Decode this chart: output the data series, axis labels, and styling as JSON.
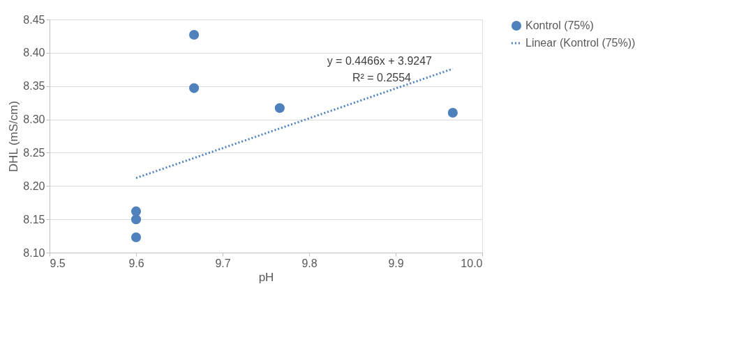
{
  "chart_data": {
    "type": "scatter",
    "xlabel": "pH",
    "ylabel": "DHL (mS/cm)",
    "xlim": [
      9.5,
      10.0
    ],
    "xticks": [
      9.5,
      9.6,
      9.7,
      9.8,
      9.9,
      {
        "value": 10.0,
        "label": "10.0"
      }
    ],
    "ylim": [
      8.1,
      8.45
    ],
    "yticks": [
      {
        "value": 8.1,
        "label": "8.10"
      },
      8.15,
      {
        "value": 8.2,
        "label": "8.20"
      },
      8.25,
      {
        "value": 8.3,
        "label": "8.30"
      },
      8.35,
      {
        "value": 8.4,
        "label": "8.40"
      },
      8.45
    ],
    "grid": "y",
    "legend": "right",
    "series": [
      {
        "name": "Kontrol (75%)",
        "color": "#4f81bd",
        "marker": "circle",
        "x": [
          9.667,
          9.667,
          9.766,
          9.966,
          9.6,
          9.6,
          9.6
        ],
        "values": [
          8.427,
          8.347,
          8.317,
          8.31,
          8.162,
          8.15,
          8.123
        ]
      },
      {
        "name": "Linear (Kontrol (75%))",
        "type": "line",
        "color": "#4f81bd",
        "line_style": "dotted",
        "x": [
          9.6,
          9.966
        ],
        "values": [
          8.212,
          8.376
        ]
      }
    ],
    "annotations": [
      "y = 0.4466x + 3.9247",
      "R² = 0.2554"
    ]
  }
}
